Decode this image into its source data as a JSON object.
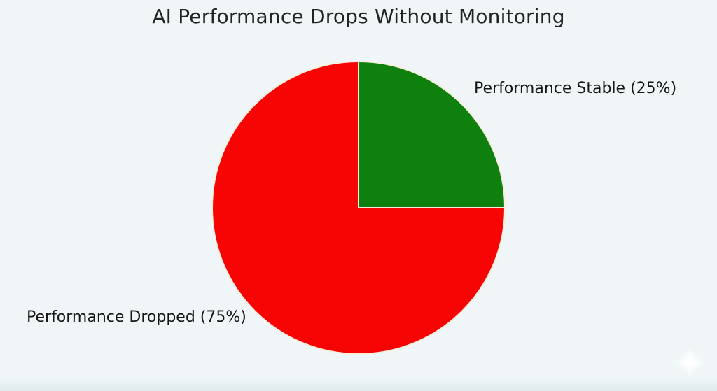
{
  "page": {
    "background_color": "#f0f6f7"
  },
  "title": {
    "text": "AI Performance Drops Without Monitoring",
    "color": "#242424"
  },
  "chart_data": {
    "type": "pie",
    "title": "AI Performance Drops Without Monitoring",
    "slices": [
      {
        "label": "Performance Dropped",
        "value": 75,
        "display_label": "Performance Dropped (75%)",
        "color": "#f70505"
      },
      {
        "label": "Performance Stable",
        "value": 25,
        "display_label": "Performance Stable (25%)",
        "color": "#0d800d"
      }
    ],
    "unit": "%",
    "start_angle_deg": 90,
    "direction": "counterclockwise",
    "wedge_edge_color": "#f6efdc",
    "legend": "none",
    "labels_position": "outside",
    "grid": false
  },
  "icons": {
    "sparkle": "soft four-point star glow, white"
  }
}
